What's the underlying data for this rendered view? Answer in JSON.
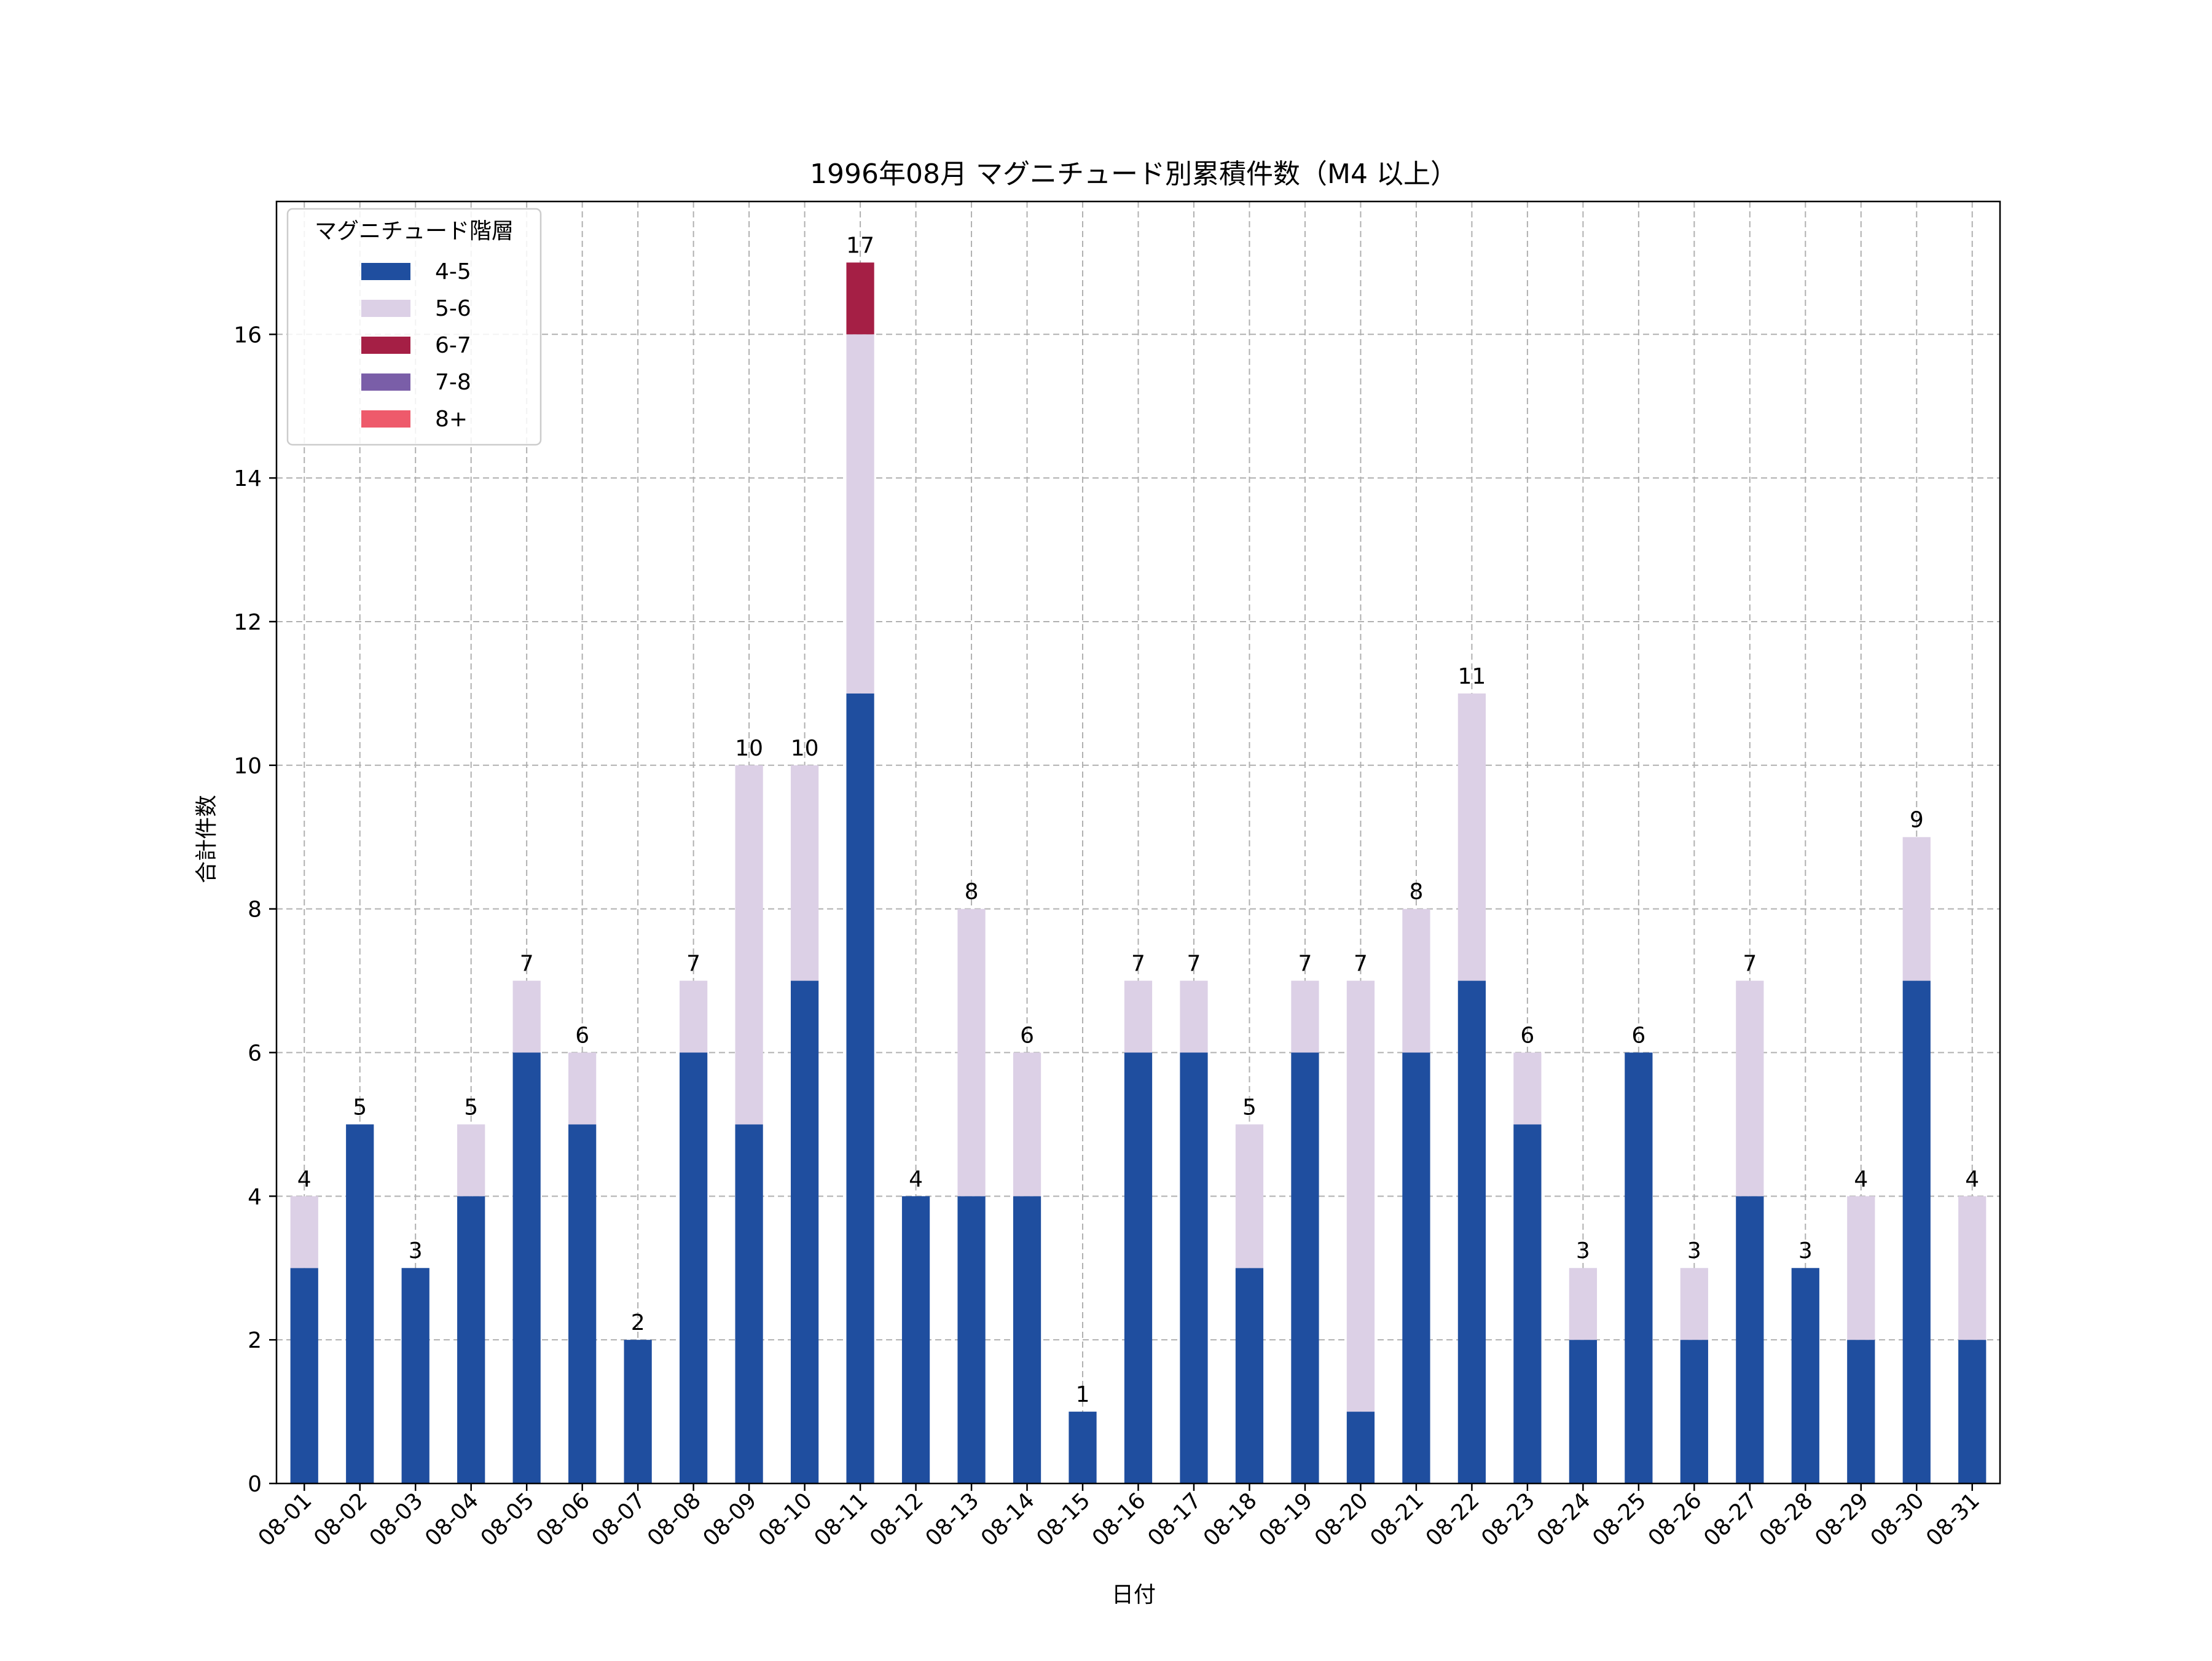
{
  "chart_data": {
    "type": "bar",
    "stacked": true,
    "title": "1996年08月 マグニチュード別累積件数（M4 以上）",
    "xlabel": "日付",
    "ylabel": "合計件数",
    "ylim": [
      0,
      17.85
    ],
    "yticks": [
      0,
      2,
      4,
      6,
      8,
      10,
      12,
      14,
      16
    ],
    "grid": true,
    "legend": {
      "title": "マグニチュード階層",
      "placement": "top-left"
    },
    "categories": [
      "08-01",
      "08-02",
      "08-03",
      "08-04",
      "08-05",
      "08-06",
      "08-07",
      "08-08",
      "08-09",
      "08-10",
      "08-11",
      "08-12",
      "08-13",
      "08-14",
      "08-15",
      "08-16",
      "08-17",
      "08-18",
      "08-19",
      "08-20",
      "08-21",
      "08-22",
      "08-23",
      "08-24",
      "08-25",
      "08-26",
      "08-27",
      "08-28",
      "08-29",
      "08-30",
      "08-31"
    ],
    "series": [
      {
        "name": "4-5",
        "color": "#1f4e9f",
        "values": [
          3,
          5,
          3,
          4,
          6,
          5,
          2,
          6,
          5,
          7,
          11,
          4,
          4,
          4,
          1,
          6,
          6,
          3,
          6,
          1,
          6,
          7,
          5,
          2,
          6,
          2,
          4,
          3,
          2,
          7,
          2
        ]
      },
      {
        "name": "5-6",
        "color": "#dcd0e6",
        "values": [
          1,
          0,
          0,
          1,
          1,
          1,
          0,
          1,
          5,
          3,
          5,
          0,
          4,
          2,
          0,
          1,
          1,
          2,
          1,
          6,
          2,
          4,
          1,
          1,
          0,
          1,
          3,
          0,
          2,
          2,
          2
        ]
      },
      {
        "name": "6-7",
        "color": "#a51f45",
        "values": [
          0,
          0,
          0,
          0,
          0,
          0,
          0,
          0,
          0,
          0,
          1,
          0,
          0,
          0,
          0,
          0,
          0,
          0,
          0,
          0,
          0,
          0,
          0,
          0,
          0,
          0,
          0,
          0,
          0,
          0,
          0
        ]
      },
      {
        "name": "7-8",
        "color": "#7a5ea8",
        "values": [
          0,
          0,
          0,
          0,
          0,
          0,
          0,
          0,
          0,
          0,
          0,
          0,
          0,
          0,
          0,
          0,
          0,
          0,
          0,
          0,
          0,
          0,
          0,
          0,
          0,
          0,
          0,
          0,
          0,
          0,
          0
        ]
      },
      {
        "name": "8+",
        "color": "#ee5a6b",
        "values": [
          0,
          0,
          0,
          0,
          0,
          0,
          0,
          0,
          0,
          0,
          0,
          0,
          0,
          0,
          0,
          0,
          0,
          0,
          0,
          0,
          0,
          0,
          0,
          0,
          0,
          0,
          0,
          0,
          0,
          0,
          0
        ]
      }
    ],
    "totals": [
      4,
      5,
      3,
      5,
      7,
      6,
      2,
      7,
      10,
      10,
      17,
      4,
      8,
      6,
      1,
      7,
      7,
      5,
      7,
      7,
      8,
      11,
      6,
      3,
      6,
      3,
      7,
      3,
      4,
      9,
      4
    ]
  }
}
